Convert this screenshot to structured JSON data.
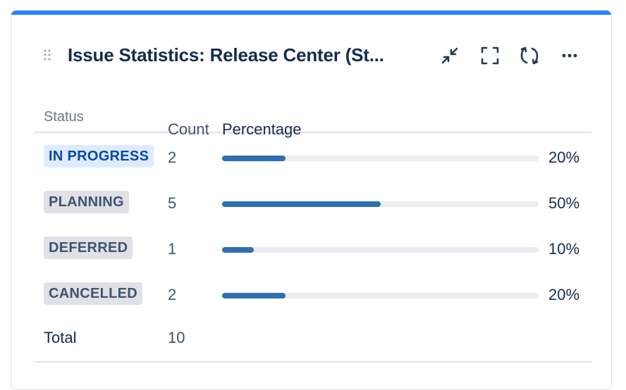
{
  "gadget": {
    "title": "Issue Statistics: Release Center (St...",
    "accent_color": "#2684ff",
    "actions": [
      {
        "icon": "minimize-icon"
      },
      {
        "icon": "fullscreen-icon"
      },
      {
        "icon": "refresh-icon"
      },
      {
        "icon": "more-icon"
      }
    ]
  },
  "table": {
    "headers": {
      "status": "Status",
      "count": "Count",
      "percentage": "Percentage"
    },
    "rows": [
      {
        "status": "IN PROGRESS",
        "count": "2",
        "percentage": "20%",
        "fraction": 0.2,
        "status_color": "blue"
      },
      {
        "status": "PLANNING",
        "count": "5",
        "percentage": "50%",
        "fraction": 0.5,
        "status_color": "grey"
      },
      {
        "status": "DEFERRED",
        "count": "1",
        "percentage": "10%",
        "fraction": 0.1,
        "status_color": "grey"
      },
      {
        "status": "CANCELLED",
        "count": "2",
        "percentage": "20%",
        "fraction": 0.2,
        "status_color": "grey"
      }
    ],
    "total": {
      "label": "Total",
      "count": "10"
    },
    "bar_color": "#2f6eb0"
  }
}
